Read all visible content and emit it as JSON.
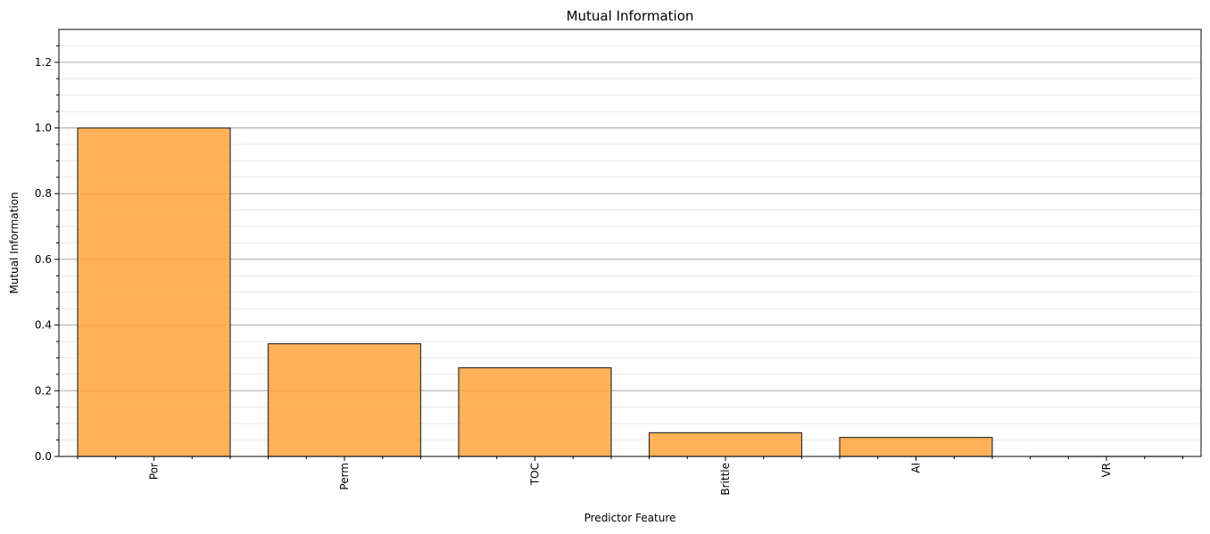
{
  "chart_data": {
    "type": "bar",
    "title": "Mutual Information",
    "xlabel": "Predictor Feature",
    "ylabel": "Mutual Information",
    "categories": [
      "Por",
      "Perm",
      "TOC",
      "Brittle",
      "AI",
      "VR"
    ],
    "values": [
      1.0,
      0.343,
      0.27,
      0.072,
      0.058,
      0.0
    ],
    "ylim": [
      0,
      1.3
    ],
    "yticks": [
      0.0,
      0.2,
      0.4,
      0.6,
      0.8,
      1.0,
      1.2
    ],
    "ytick_labels": [
      "0.0",
      "0.2",
      "0.4",
      "0.6",
      "0.8",
      "1.0",
      "1.2"
    ],
    "grid": {
      "major": true,
      "minor": true,
      "axis": "y"
    },
    "colors": {
      "bar_fill": "#ffa53a",
      "bar_edge": "#333333",
      "major_grid": "#a6a6a6",
      "minor_grid": "#e6e6e6"
    }
  }
}
